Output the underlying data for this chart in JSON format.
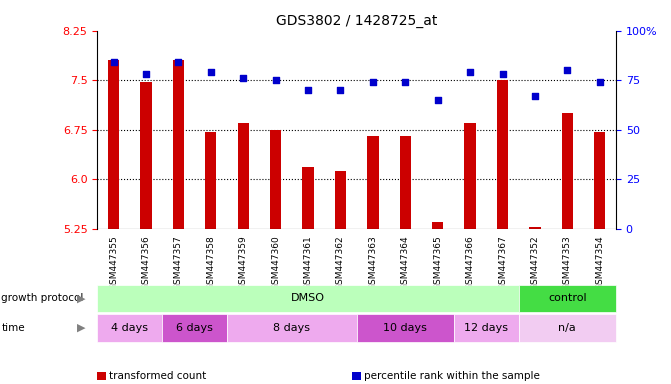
{
  "title": "GDS3802 / 1428725_at",
  "samples": [
    "GSM447355",
    "GSM447356",
    "GSM447357",
    "GSM447358",
    "GSM447359",
    "GSM447360",
    "GSM447361",
    "GSM447362",
    "GSM447363",
    "GSM447364",
    "GSM447365",
    "GSM447366",
    "GSM447367",
    "GSM447352",
    "GSM447353",
    "GSM447354"
  ],
  "transformed_count": [
    7.8,
    7.48,
    7.8,
    6.72,
    6.85,
    6.75,
    6.18,
    6.12,
    6.65,
    6.65,
    5.35,
    6.85,
    7.5,
    5.28,
    7.0,
    6.72
  ],
  "percentile_rank": [
    84,
    78,
    84,
    79,
    76,
    75,
    70,
    70,
    74,
    74,
    65,
    79,
    78,
    67,
    80,
    74
  ],
  "bar_color": "#cc0000",
  "dot_color": "#0000cc",
  "ylim_left": [
    5.25,
    8.25
  ],
  "ylim_right": [
    0,
    100
  ],
  "yticks_left": [
    5.25,
    6.0,
    6.75,
    7.5,
    8.25
  ],
  "yticks_right": [
    0,
    25,
    50,
    75,
    100
  ],
  "ytick_labels_right": [
    "0",
    "25",
    "50",
    "75",
    "100%"
  ],
  "hlines": [
    6.0,
    6.75,
    7.5
  ],
  "growth_protocol_groups": [
    {
      "label": "DMSO",
      "start": 0,
      "end": 13,
      "color": "#bbffbb"
    },
    {
      "label": "control",
      "start": 13,
      "end": 16,
      "color": "#44dd44"
    }
  ],
  "time_groups": [
    {
      "label": "4 days",
      "start": 0,
      "end": 2,
      "color": "#eeaaee"
    },
    {
      "label": "6 days",
      "start": 2,
      "end": 4,
      "color": "#cc55cc"
    },
    {
      "label": "8 days",
      "start": 4,
      "end": 8,
      "color": "#eeaaee"
    },
    {
      "label": "10 days",
      "start": 8,
      "end": 11,
      "color": "#cc55cc"
    },
    {
      "label": "12 days",
      "start": 11,
      "end": 13,
      "color": "#eeaaee"
    },
    {
      "label": "n/a",
      "start": 13,
      "end": 16,
      "color": "#f2ccf2"
    }
  ],
  "legend_items": [
    {
      "label": "transformed count",
      "color": "#cc0000"
    },
    {
      "label": "percentile rank within the sample",
      "color": "#0000cc"
    }
  ],
  "bar_width": 0.35,
  "background_color": "#ffffff",
  "plot_bg_color": "#ffffff",
  "label_row1": "growth protocol",
  "label_row2": "time"
}
